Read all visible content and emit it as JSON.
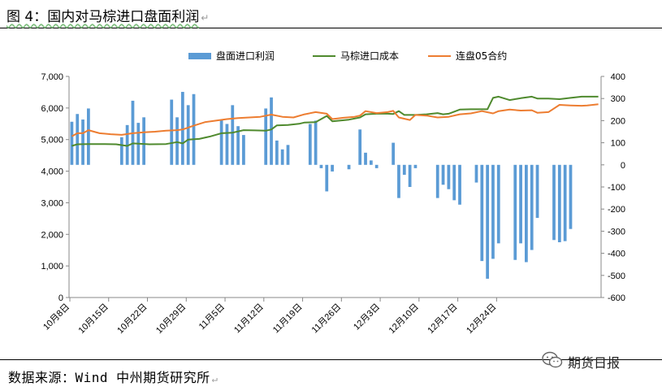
{
  "page": {
    "title": "图 4：国内对马棕进口盘面利润",
    "para_mark": "↵",
    "source": "数据来源：Wind 中州期货研究所",
    "brand_name": "期货日报",
    "brand_icon": "wechat-icon"
  },
  "chart_data": {
    "type": "bar+line",
    "title": "",
    "xlabel": "",
    "ylabel": "",
    "ylim_left": [
      0,
      7000
    ],
    "ylim_right": [
      -600,
      400
    ],
    "left_ticks": [
      "7,000",
      "6,000",
      "5,000",
      "4,000",
      "3,000",
      "2,000",
      "1,000",
      "0"
    ],
    "left_tick_values": [
      7000,
      6000,
      5000,
      4000,
      3000,
      2000,
      1000,
      0
    ],
    "right_ticks": [
      "400",
      "300",
      "200",
      "100",
      "0",
      "-100",
      "-200",
      "-300",
      "-400",
      "-500",
      "-600"
    ],
    "right_tick_values": [
      400,
      300,
      200,
      100,
      0,
      -100,
      -200,
      -300,
      -400,
      -500,
      -600
    ],
    "x_tick_labels": [
      "10月8日",
      "10月15日",
      "10月22日",
      "10月29日",
      "11月5日",
      "11月12日",
      "11月19日",
      "11月26日",
      "12月3日",
      "12月10日",
      "12月17日",
      "12月24日"
    ],
    "legend_position": "top",
    "series": [
      {
        "name": "盘面进口利润",
        "axis": "right",
        "kind": "bar",
        "color": "#5b9bd5",
        "points": [
          [
            0,
            195
          ],
          [
            1,
            230
          ],
          [
            2,
            205
          ],
          [
            3,
            255
          ],
          [
            9,
            125
          ],
          [
            10,
            180
          ],
          [
            11,
            290
          ],
          [
            12,
            190
          ],
          [
            13,
            215
          ],
          [
            18,
            295
          ],
          [
            19,
            215
          ],
          [
            20,
            330
          ],
          [
            21,
            270
          ],
          [
            22,
            320
          ],
          [
            27,
            205
          ],
          [
            28,
            185
          ],
          [
            29,
            270
          ],
          [
            30,
            175
          ],
          [
            31,
            135
          ],
          [
            35,
            255
          ],
          [
            36,
            305
          ],
          [
            37,
            110
          ],
          [
            38,
            70
          ],
          [
            39,
            90
          ],
          [
            43,
            185
          ],
          [
            44,
            200
          ],
          [
            45,
            -15
          ],
          [
            46,
            -120
          ],
          [
            47,
            -30
          ],
          [
            50,
            -20
          ],
          [
            52,
            160
          ],
          [
            53,
            55
          ],
          [
            54,
            20
          ],
          [
            55,
            -15
          ],
          [
            58,
            100
          ],
          [
            59,
            -150
          ],
          [
            60,
            -45
          ],
          [
            61,
            -100
          ],
          [
            62,
            -15
          ],
          [
            66,
            -150
          ],
          [
            67,
            -90
          ],
          [
            68,
            -110
          ],
          [
            69,
            -160
          ],
          [
            70,
            -180
          ],
          [
            73,
            -80
          ],
          [
            74,
            -435
          ],
          [
            75,
            -515
          ],
          [
            76,
            -425
          ],
          [
            77,
            -355
          ],
          [
            80,
            -430
          ],
          [
            81,
            -355
          ],
          [
            82,
            -440
          ],
          [
            83,
            -385
          ],
          [
            84,
            -240
          ],
          [
            87,
            -340
          ],
          [
            88,
            -350
          ],
          [
            89,
            -345
          ],
          [
            90,
            -290
          ]
        ]
      },
      {
        "name": "马棕进口成本",
        "axis": "left",
        "kind": "line",
        "color": "#4f8a2e",
        "points": [
          [
            0,
            4800
          ],
          [
            1,
            4850
          ],
          [
            3,
            4860
          ],
          [
            6,
            4860
          ],
          [
            8,
            4850
          ],
          [
            10,
            4800
          ],
          [
            11,
            4880
          ],
          [
            14,
            4850
          ],
          [
            17,
            4860
          ],
          [
            19,
            4920
          ],
          [
            20,
            4880
          ],
          [
            21,
            5000
          ],
          [
            23,
            5020
          ],
          [
            25,
            5100
          ],
          [
            27,
            5200
          ],
          [
            29,
            5220
          ],
          [
            31,
            5300
          ],
          [
            33,
            5290
          ],
          [
            35,
            5280
          ],
          [
            36,
            5320
          ],
          [
            37,
            5450
          ],
          [
            39,
            5460
          ],
          [
            41,
            5500
          ],
          [
            42,
            5540
          ],
          [
            44,
            5550
          ],
          [
            46,
            5750
          ],
          [
            47,
            5580
          ],
          [
            50,
            5630
          ],
          [
            52,
            5700
          ],
          [
            53,
            5800
          ],
          [
            55,
            5820
          ],
          [
            57,
            5820
          ],
          [
            58,
            5810
          ],
          [
            59,
            5900
          ],
          [
            60,
            5780
          ],
          [
            62,
            5780
          ],
          [
            64,
            5800
          ],
          [
            66,
            5840
          ],
          [
            67,
            5800
          ],
          [
            68,
            5820
          ],
          [
            70,
            5950
          ],
          [
            72,
            5960
          ],
          [
            75,
            5960
          ],
          [
            76,
            6320
          ],
          [
            77,
            6360
          ],
          [
            79,
            6250
          ],
          [
            81,
            6310
          ],
          [
            83,
            6360
          ],
          [
            84,
            6300
          ],
          [
            86,
            6300
          ],
          [
            88,
            6280
          ],
          [
            90,
            6320
          ],
          [
            92,
            6360
          ],
          [
            94,
            6360
          ],
          [
            95,
            6360
          ]
        ]
      },
      {
        "name": "连盘05合约",
        "axis": "left",
        "kind": "line",
        "color": "#ed7d31",
        "points": [
          [
            0,
            5100
          ],
          [
            1,
            5200
          ],
          [
            2,
            5200
          ],
          [
            3,
            5300
          ],
          [
            5,
            5200
          ],
          [
            7,
            5170
          ],
          [
            9,
            5150
          ],
          [
            11,
            5200
          ],
          [
            13,
            5230
          ],
          [
            15,
            5250
          ],
          [
            17,
            5280
          ],
          [
            19,
            5300
          ],
          [
            20,
            5320
          ],
          [
            22,
            5440
          ],
          [
            24,
            5550
          ],
          [
            26,
            5600
          ],
          [
            28,
            5650
          ],
          [
            30,
            5680
          ],
          [
            32,
            5700
          ],
          [
            34,
            5720
          ],
          [
            36,
            5790
          ],
          [
            38,
            5720
          ],
          [
            40,
            5700
          ],
          [
            42,
            5800
          ],
          [
            44,
            5870
          ],
          [
            46,
            5820
          ],
          [
            47,
            5650
          ],
          [
            49,
            5690
          ],
          [
            51,
            5720
          ],
          [
            52,
            5760
          ],
          [
            53,
            5900
          ],
          [
            55,
            5840
          ],
          [
            57,
            5870
          ],
          [
            58,
            5910
          ],
          [
            59,
            5700
          ],
          [
            61,
            5620
          ],
          [
            62,
            5780
          ],
          [
            64,
            5760
          ],
          [
            66,
            5700
          ],
          [
            68,
            5720
          ],
          [
            70,
            5800
          ],
          [
            72,
            5830
          ],
          [
            74,
            5900
          ],
          [
            76,
            5830
          ],
          [
            77,
            5900
          ],
          [
            79,
            5950
          ],
          [
            81,
            5920
          ],
          [
            83,
            5930
          ],
          [
            84,
            5850
          ],
          [
            86,
            5870
          ],
          [
            88,
            6100
          ],
          [
            90,
            6080
          ],
          [
            92,
            6070
          ],
          [
            93,
            6080
          ],
          [
            94,
            6100
          ],
          [
            95,
            6120
          ]
        ]
      }
    ]
  }
}
